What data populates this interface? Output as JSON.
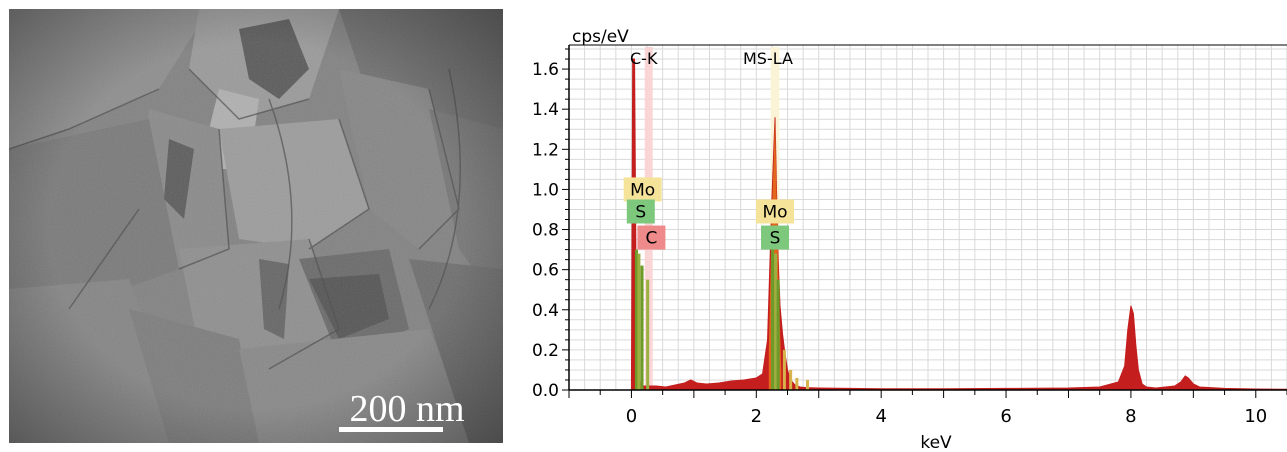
{
  "micrograph": {
    "scale_bar_label": "200 nm"
  },
  "chart_data": {
    "type": "area",
    "ylabel": "cps/eV",
    "xlabel": "keV",
    "xlim": [
      -1,
      10.5
    ],
    "ylim": [
      0,
      1.72
    ],
    "xticks": [
      0,
      2,
      4,
      6,
      8,
      10
    ],
    "yticks": [
      0.0,
      0.2,
      0.4,
      0.6,
      0.8,
      1.0,
      1.2,
      1.4,
      1.6
    ],
    "grid": true,
    "colors": {
      "spectrum": "#c41e1e",
      "mo_peak": "#e8741a",
      "mo_tag": "#f6e39a",
      "s_tag": "#7ec87e",
      "c_tag": "#ef8a8a"
    },
    "spectrum": {
      "x": [
        0.0,
        0.02,
        0.05,
        0.08,
        0.12,
        0.16,
        0.2,
        0.25,
        0.3,
        0.4,
        0.55,
        0.7,
        0.85,
        0.95,
        1.05,
        1.2,
        1.4,
        1.6,
        1.8,
        2.0,
        2.1,
        2.18,
        2.22,
        2.25,
        2.28,
        2.3,
        2.32,
        2.35,
        2.38,
        2.42,
        2.46,
        2.5,
        2.55,
        2.62,
        2.7,
        2.8,
        3.0,
        3.5,
        4.0,
        5.0,
        6.0,
        7.0,
        7.5,
        7.8,
        7.9,
        7.95,
        8.0,
        8.04,
        8.08,
        8.12,
        8.18,
        8.25,
        8.4,
        8.7,
        8.8,
        8.87,
        8.92,
        9.0,
        9.1,
        9.5,
        10.0,
        10.5
      ],
      "y": [
        0.0,
        1.65,
        1.65,
        0.3,
        0.06,
        0.025,
        0.02,
        0.02,
        0.02,
        0.02,
        0.015,
        0.025,
        0.035,
        0.05,
        0.035,
        0.03,
        0.035,
        0.045,
        0.05,
        0.06,
        0.08,
        0.25,
        0.65,
        0.95,
        1.2,
        1.36,
        1.05,
        0.65,
        0.42,
        0.28,
        0.18,
        0.1,
        0.05,
        0.025,
        0.015,
        0.012,
        0.01,
        0.008,
        0.006,
        0.006,
        0.008,
        0.01,
        0.015,
        0.04,
        0.12,
        0.3,
        0.42,
        0.38,
        0.22,
        0.1,
        0.03,
        0.015,
        0.01,
        0.02,
        0.04,
        0.07,
        0.06,
        0.03,
        0.015,
        0.008,
        0.005,
        0.004
      ]
    },
    "lines": [
      {
        "name": "C-K",
        "x": 0.277,
        "label_shown": "C-K"
      },
      {
        "name": "Mo-L",
        "x": 2.293,
        "label_shown": "Mo-LA"
      },
      {
        "name": "S-K",
        "x": 2.307,
        "label_shown": "S-KA"
      }
    ],
    "line_header_label": "C-K",
    "line_header_label_2": "MS-LA",
    "element_tags": [
      {
        "label": "Mo",
        "x": 0.18,
        "y": 1.0,
        "kind": "mo"
      },
      {
        "label": "S",
        "x": 0.15,
        "y": 0.89,
        "kind": "s"
      },
      {
        "label": "C",
        "x": 0.32,
        "y": 0.76,
        "kind": "c"
      },
      {
        "label": "Mo",
        "x": 2.3,
        "y": 0.89,
        "kind": "mo"
      },
      {
        "label": "S",
        "x": 2.3,
        "y": 0.76,
        "kind": "s"
      }
    ]
  }
}
